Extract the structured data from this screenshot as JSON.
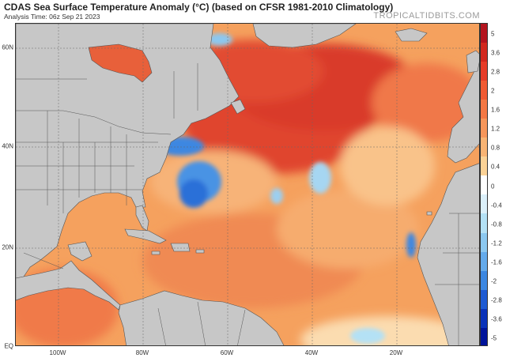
{
  "header": {
    "title": "CDAS Sea Surface Temperature Anomaly (°C) (based on CFSR 1981-2010 Climatology)",
    "subtitle": "Analysis Time: 06z Sep 21 2023",
    "credit": "TROPICALTIDBITS.COM"
  },
  "map": {
    "lat_labels": [
      "60N",
      "40N",
      "20N",
      "EQ"
    ],
    "lon_labels": [
      "100W",
      "80W",
      "60W",
      "40W",
      "20W"
    ],
    "lon_range": [
      -110,
      0
    ],
    "lat_range": [
      0,
      65
    ],
    "land_color": "#c7c7c7",
    "border_color": "#555555"
  },
  "colorbar": {
    "tick_labels": [
      "5",
      "3.6",
      "2.8",
      "2",
      "1.6",
      "1.2",
      "0.8",
      "0.4",
      "0",
      "-0.4",
      "-0.8",
      "-1.2",
      "-1.6",
      "-2",
      "-2.8",
      "-3.6",
      "-5"
    ],
    "colors": [
      "#b4141e",
      "#d2281e",
      "#e63c28",
      "#f05a32",
      "#f47844",
      "#f7965a",
      "#f9b474",
      "#fbd296",
      "#ffffff",
      "#dcf0fa",
      "#b4e1f5",
      "#8cc8f0",
      "#64aaeb",
      "#3c87e1",
      "#1e5ad2",
      "#0a32b9",
      "#00149b"
    ]
  }
}
